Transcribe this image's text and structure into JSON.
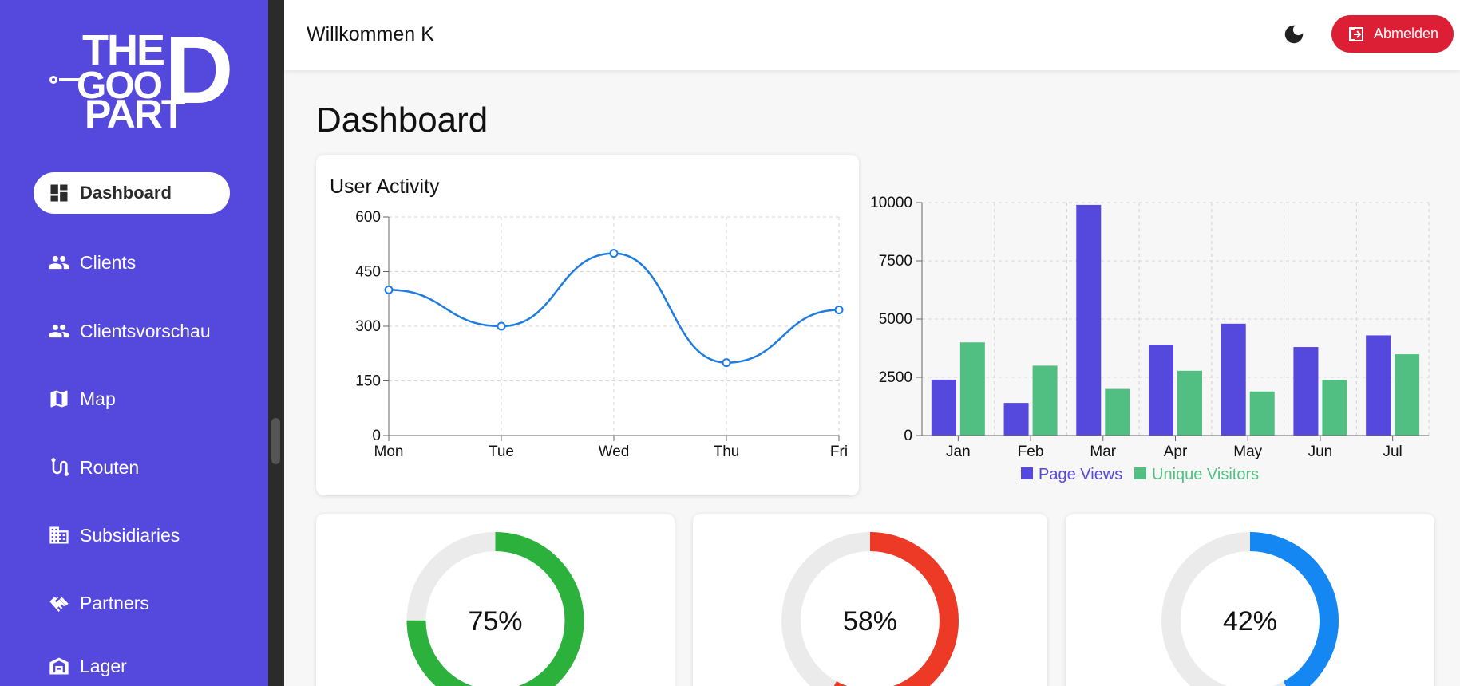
{
  "app": {
    "logo_text": "THE GOOD PART",
    "welcome": "Willkommen K",
    "logout_label": "Abmelden",
    "accent": "#5548dc",
    "danger": "#dc1f35"
  },
  "sidebar": {
    "items": [
      {
        "label": "Dashboard",
        "icon": "dashboard-icon",
        "active": true
      },
      {
        "label": "Clients",
        "icon": "people-icon"
      },
      {
        "label": "Clientsvorschau",
        "icon": "people-icon"
      },
      {
        "label": "Map",
        "icon": "map-icon"
      },
      {
        "label": "Routen",
        "icon": "route-icon"
      },
      {
        "label": "Subsidiaries",
        "icon": "building-icon"
      },
      {
        "label": "Partners",
        "icon": "handshake-icon"
      },
      {
        "label": "Lager",
        "icon": "warehouse-icon"
      }
    ]
  },
  "main": {
    "title": "Dashboard"
  },
  "chart_data": [
    {
      "type": "line",
      "title": "User Activity",
      "categories": [
        "Mon",
        "Tue",
        "Wed",
        "Thu",
        "Fri"
      ],
      "series": [
        {
          "values": [
            400,
            300,
            500,
            200,
            345
          ],
          "color": "#1e7be0"
        }
      ],
      "ylim": [
        0,
        600
      ],
      "yticks": [
        0,
        150,
        300,
        450,
        600
      ],
      "grid": true
    },
    {
      "type": "bar",
      "categories": [
        "Jan",
        "Feb",
        "Mar",
        "Apr",
        "May",
        "Jun",
        "Jul"
      ],
      "series": [
        {
          "name": "Page Views",
          "values": [
            2400,
            1400,
            9900,
            3900,
            4800,
            3800,
            4300
          ],
          "color": "#5548dc"
        },
        {
          "name": "Unique Visitors",
          "values": [
            4000,
            3000,
            2000,
            2780,
            1890,
            2390,
            3490
          ],
          "color": "#52bf82"
        }
      ],
      "ylim": [
        0,
        10000
      ],
      "yticks": [
        0,
        2500,
        5000,
        7500,
        10000
      ],
      "grid": true,
      "legend": "bottom"
    },
    {
      "type": "pie",
      "label": "75%",
      "value": 75,
      "color": "#2bb13c",
      "track": "#ebebeb"
    },
    {
      "type": "pie",
      "label": "58%",
      "value": 58,
      "color": "#ec3a26",
      "track": "#ebebeb"
    },
    {
      "type": "pie",
      "label": "42%",
      "value": 42,
      "color": "#1487f2",
      "track": "#ebebeb"
    }
  ]
}
